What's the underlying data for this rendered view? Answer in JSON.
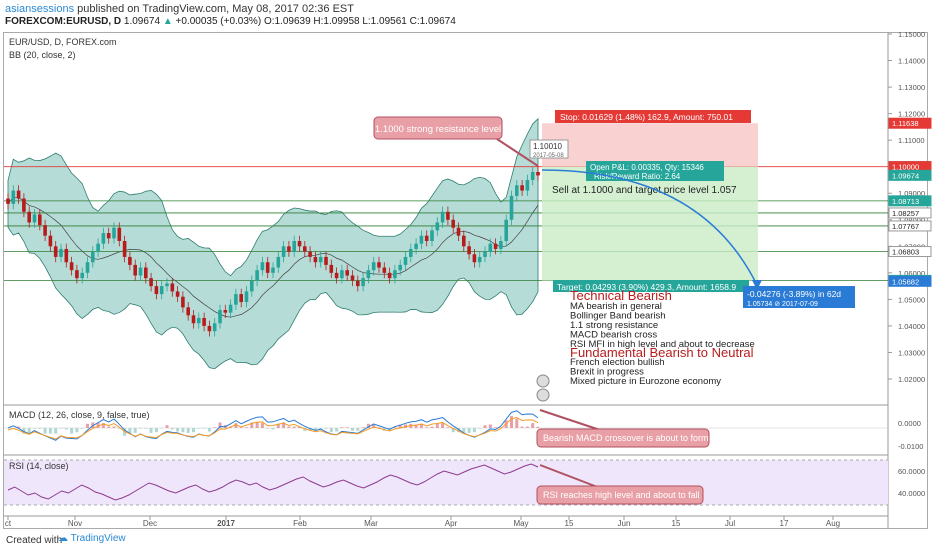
{
  "header": {
    "author": "asiansessions",
    "published_text": "published on TradingView.com, May 08, 2017 02:36 EST",
    "symbol_line": "FOREXCOM:EURUSD, D",
    "last": "1.09674",
    "change": "+0.00035 (+0.03%)",
    "ohlc": "O:1.09639 H:1.09958 L:1.09561 C:1.09674"
  },
  "legend": {
    "main": "EUR/USD, D, FOREX.com",
    "bb": "BB (20, close, 2)",
    "macd": "MACD (12, 26, close, 9, false, true)",
    "rsi": "RSI (14, close)"
  },
  "footer": {
    "created": "Created with",
    "brand": "TradingView"
  },
  "colors": {
    "bull": "#26a69a",
    "bear": "#b71c1c",
    "band": "#2e9c8f",
    "target": "#2a7bd6",
    "stop": "#e53935",
    "note_fill": "#e8a0a6",
    "note_stroke": "#b05060"
  },
  "chart_data": {
    "type": "candlestick",
    "symbol": "EUR/USD",
    "price_axis": {
      "min": 1.02,
      "max": 1.15,
      "ticks": [
        "1.15000",
        "1.14000",
        "1.13000",
        "1.12000",
        "1.11000",
        "1.10000",
        "1.09000",
        "1.08000",
        "1.07000",
        "1.06000",
        "1.05000",
        "1.04000",
        "1.03000",
        "1.02000"
      ]
    },
    "time_ticks": [
      "ct",
      "Nov",
      "Dec",
      "2017",
      "Feb",
      "Mar",
      "Apr",
      "May",
      "15",
      "Jun",
      "15",
      "Jul",
      "17",
      "Aug"
    ],
    "price_labels": [
      {
        "text": "1.11638",
        "value": 1.11638,
        "color": "#e53935"
      },
      {
        "text": "1.10009",
        "value": 1.10009,
        "color": "#ffffff"
      },
      {
        "text": "1.10000",
        "value": 1.1,
        "color": "#e53935"
      },
      {
        "text": "1.09674",
        "value": 1.09674,
        "color": "#26a69a"
      },
      {
        "text": "1.08713",
        "value": 1.08713,
        "color": "#26a69a"
      },
      {
        "text": "1.08257",
        "value": 1.08257,
        "color": "#ffffff"
      },
      {
        "text": "1.07767",
        "value": 1.07767,
        "color": "#ffffff"
      },
      {
        "text": "1.06803",
        "value": 1.06803,
        "color": "#ffffff"
      },
      {
        "text": "1.05716",
        "value": 1.05716,
        "color": "#26a69a"
      },
      {
        "text": "1.05682",
        "value": 1.05682,
        "color": "#2a7bd6"
      }
    ],
    "horizontal_levels": [
      1.1,
      1.08713,
      1.08257,
      1.07767,
      1.06803,
      1.05716
    ],
    "candles": [
      1.086,
      1.091,
      1.088,
      1.083,
      1.079,
      1.082,
      1.078,
      1.074,
      1.07,
      1.066,
      1.069,
      1.064,
      1.061,
      1.058,
      1.06,
      1.064,
      1.068,
      1.071,
      1.075,
      1.073,
      1.077,
      1.072,
      1.066,
      1.063,
      1.059,
      1.062,
      1.058,
      1.055,
      1.052,
      1.055,
      1.056,
      1.053,
      1.051,
      1.047,
      1.044,
      1.041,
      1.043,
      1.04,
      1.038,
      1.041,
      1.046,
      1.045,
      1.048,
      1.052,
      1.049,
      1.053,
      1.057,
      1.061,
      1.064,
      1.06,
      1.062,
      1.066,
      1.07,
      1.068,
      1.072,
      1.07,
      1.068,
      1.066,
      1.064,
      1.066,
      1.063,
      1.06,
      1.058,
      1.061,
      1.059,
      1.057,
      1.055,
      1.058,
      1.061,
      1.064,
      1.062,
      1.06,
      1.058,
      1.061,
      1.063,
      1.066,
      1.069,
      1.071,
      1.074,
      1.072,
      1.076,
      1.079,
      1.083,
      1.08,
      1.077,
      1.074,
      1.07,
      1.067,
      1.064,
      1.066,
      1.068,
      1.071,
      1.069,
      1.072,
      1.08,
      1.089,
      1.093,
      1.091,
      1.095,
      1.098,
      1.0967
    ],
    "macd_axis": {
      "ticks": [
        "0.0000",
        "-0.0100"
      ]
    },
    "rsi_axis": {
      "ticks": [
        "60.0000",
        "40.0000"
      ]
    },
    "rsi_values": [
      45,
      48,
      44,
      40,
      42,
      38,
      36,
      40,
      44,
      42,
      46,
      50,
      47,
      43,
      41,
      38,
      35,
      37,
      40,
      44,
      48,
      52,
      50,
      47,
      44,
      42,
      45,
      48,
      50,
      46,
      43,
      45,
      48,
      52,
      55,
      53,
      50,
      52,
      48,
      45,
      47,
      50,
      53,
      56,
      58,
      54,
      51,
      48,
      50,
      53,
      55,
      52,
      49,
      47,
      50,
      53,
      57,
      60,
      58,
      55,
      52,
      50,
      53,
      57,
      61,
      64,
      62,
      60,
      63,
      66,
      68,
      70,
      67,
      64,
      61,
      63,
      66,
      69,
      71,
      68
    ]
  },
  "annotations": {
    "resistance_note": "1.1000 strong resistance level",
    "stop": "Stop: 0.01629 (1.48%) 162.9, Amount: 750.01",
    "open_pnl": "Open P&L: 0.00335, Qty: 15346",
    "rr_ratio": "Risk/Reward Ratio: 2.64",
    "sell_note": "Sell at 1.1000 and target price level 1.057",
    "target": "Target: 0.04293 (3.90%) 429.3, Amount: 1658.9",
    "projection_1": "-0.04276 (-3.89%) in 62d",
    "projection_2": "1.05734  ⊘ 2017-07-09",
    "price_tag_1": "1.10010",
    "price_tag_2": "2017-05-08",
    "tech_title": "Technical Bearish",
    "tech_items": [
      "MA bearish in general",
      "Bollinger Band bearish",
      "1.1 strong resistance",
      "MACD bearish cross",
      "RSI MFI in high level and about to decrease"
    ],
    "fund_title": "Fundamental Bearish to Neutral",
    "fund_items": [
      "French election bullish",
      "Brexit in progress",
      "Mixed picture in Eurozone economy"
    ],
    "macd_note": "Bearish MACD crossover is about to form",
    "rsi_note": "RSI reaches high level and about to fall"
  }
}
